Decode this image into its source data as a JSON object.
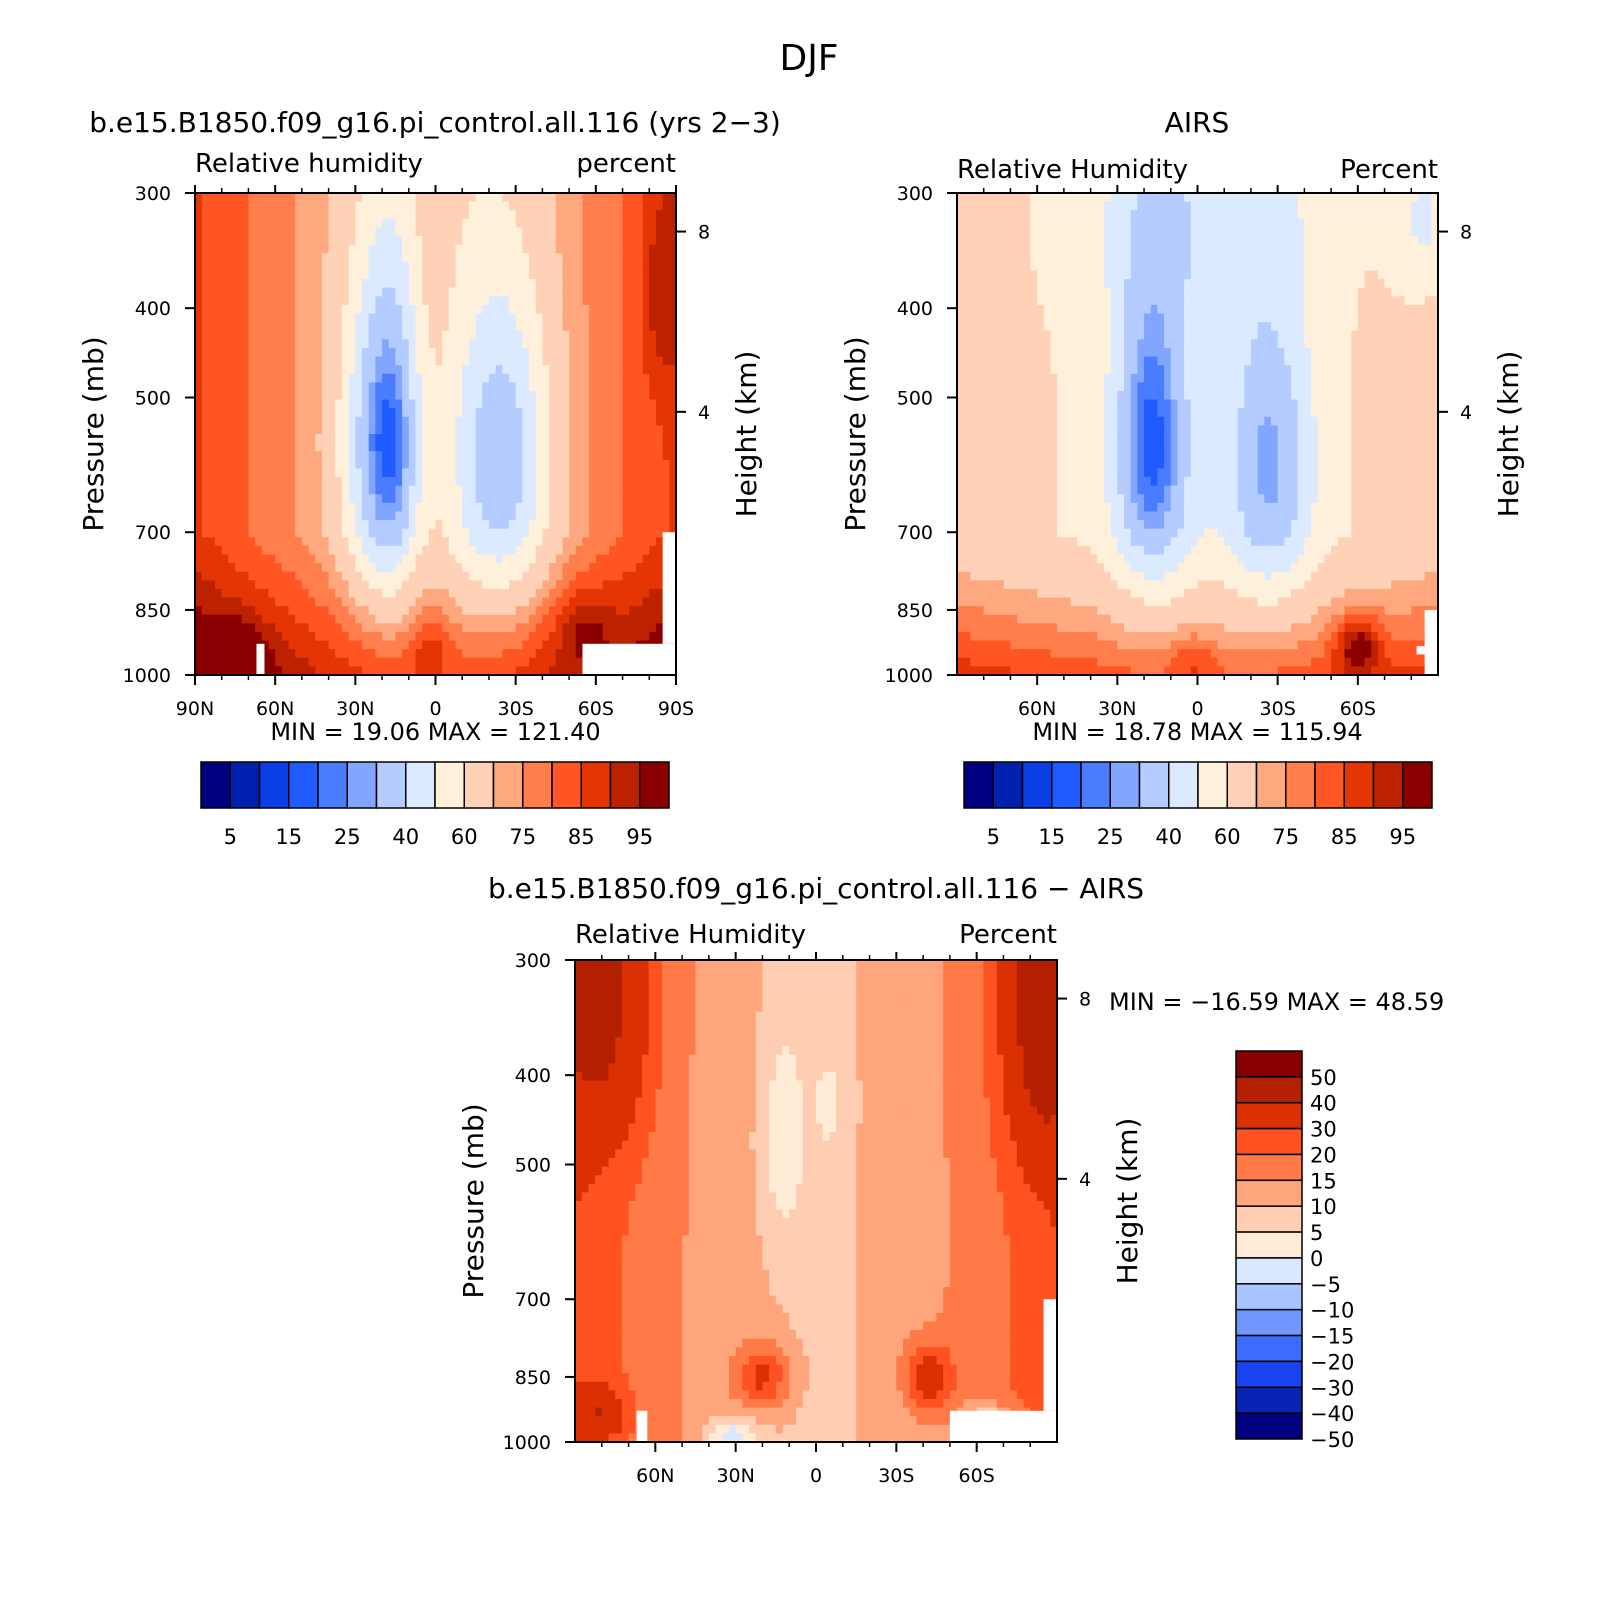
{
  "figure": {
    "title": "DJF"
  },
  "colors": {
    "abs_palette": [
      "#000080",
      "#0020b0",
      "#0a3ee6",
      "#1f5bff",
      "#4a7cff",
      "#82a6ff",
      "#b4ccff",
      "#dbeaff",
      "#fff0dc",
      "#ffd2b8",
      "#ffa880",
      "#ff7e4c",
      "#ff5624",
      "#e53505",
      "#bd2200",
      "#8a0000"
    ],
    "diff_palette": [
      "#000080",
      "#0b23b5",
      "#1a42f0",
      "#3b6cff",
      "#6f97ff",
      "#a8c4ff",
      "#d9e8ff",
      "#ffebd6",
      "#ffcdb2",
      "#ffa57c",
      "#ff7a46",
      "#ff5220",
      "#da3004",
      "#b32000",
      "#860000"
    ]
  },
  "chart_data": [
    {
      "type": "heatmap",
      "subtype": "filled-contour",
      "title": "b.e15.B1850.f09_g16.pi_control.all.116 (yrs 2−3)",
      "left_string": "Relative humidity",
      "right_string": "percent",
      "xlabel": "",
      "ylabel": "Pressure (mb)",
      "y2label": "Height (km)",
      "xlim": [
        90,
        -90
      ],
      "ylim": [
        1000,
        300
      ],
      "x_ticks": [
        90,
        60,
        30,
        0,
        -30,
        -60,
        -90
      ],
      "x_ticklabels": [
        "90N",
        "60N",
        "30N",
        "0",
        "30S",
        "60S",
        "90S"
      ],
      "y_ticks": [
        300,
        400,
        500,
        700,
        850,
        1000
      ],
      "y_ticklabels": [
        "300",
        "400",
        "500",
        "700",
        "850",
        "1000"
      ],
      "y2_ticks": [
        8,
        4
      ],
      "y2_ticklabels": [
        "8",
        "4"
      ],
      "min_label": "MIN =",
      "min_value": "19.06",
      "max_label": "MAX =",
      "max_value": "121.40",
      "field_min": 19.06,
      "field_max": 121.4,
      "levels": [
        5,
        10,
        15,
        20,
        25,
        30,
        40,
        50,
        60,
        70,
        75,
        80,
        85,
        90,
        95
      ],
      "colorbar_labels": [
        "5",
        "15",
        "25",
        "40",
        "60",
        "75",
        "85",
        "95"
      ],
      "colorbar_orientation": "horizontal",
      "features": [
        {
          "name": "subtropical dry minimum NH",
          "lat": 18,
          "pressure": 560,
          "value": 20
        },
        {
          "name": "subtropical dry minimum SH",
          "lat": -25,
          "pressure": 560,
          "value": 35
        },
        {
          "name": "moist boundary layer NH high-lat",
          "lat": 75,
          "pressure": 950,
          "value": 100
        },
        {
          "name": "moist boundary layer SH high-lat",
          "lat": -55,
          "pressure": 880,
          "value": 95
        }
      ]
    },
    {
      "type": "heatmap",
      "subtype": "filled-contour",
      "title": "AIRS",
      "left_string": "Relative Humidity",
      "right_string": "Percent",
      "xlabel": "",
      "ylabel": "Pressure (mb)",
      "y2label": "Height (km)",
      "xlim": [
        90,
        -90
      ],
      "ylim": [
        1000,
        300
      ],
      "x_ticks": [
        60,
        30,
        0,
        -30,
        -60
      ],
      "x_ticklabels": [
        "60N",
        "30N",
        "0",
        "30S",
        "60S"
      ],
      "y_ticks": [
        300,
        400,
        500,
        700,
        850,
        1000
      ],
      "y_ticklabels": [
        "300",
        "400",
        "500",
        "700",
        "850",
        "1000"
      ],
      "y2_ticks": [
        8,
        4
      ],
      "y2_ticklabels": [
        "8",
        "4"
      ],
      "min_label": "MIN =",
      "min_value": "18.78",
      "max_label": "MAX =",
      "max_value": "115.94",
      "field_min": 18.78,
      "field_max": 115.94,
      "levels": [
        5,
        10,
        15,
        20,
        25,
        30,
        40,
        50,
        60,
        70,
        75,
        80,
        85,
        90,
        95
      ],
      "colorbar_labels": [
        "5",
        "15",
        "25",
        "40",
        "60",
        "75",
        "85",
        "95"
      ],
      "colorbar_orientation": "horizontal",
      "features": [
        {
          "name": "subtropical dry minimum NH",
          "lat": 17,
          "pressure": 560,
          "value": 22
        },
        {
          "name": "subtropical dry minimum SH",
          "lat": -27,
          "pressure": 580,
          "value": 30
        },
        {
          "name": "moist boundary layer SH high-lat",
          "lat": -60,
          "pressure": 920,
          "value": 100
        }
      ]
    },
    {
      "type": "heatmap",
      "subtype": "filled-contour",
      "title": "b.e15.B1850.f09_g16.pi_control.all.116 − AIRS",
      "left_string": "Relative Humidity",
      "right_string": "Percent",
      "xlabel": "",
      "ylabel": "Pressure (mb)",
      "y2label": "Height (km)",
      "xlim": [
        90,
        -90
      ],
      "ylim": [
        1000,
        300
      ],
      "x_ticks": [
        60,
        30,
        0,
        -30,
        -60
      ],
      "x_ticklabels": [
        "60N",
        "30N",
        "0",
        "30S",
        "60S"
      ],
      "y_ticks": [
        300,
        400,
        500,
        700,
        850,
        1000
      ],
      "y_ticklabels": [
        "300",
        "400",
        "500",
        "700",
        "850",
        "1000"
      ],
      "y2_ticks": [
        8,
        4
      ],
      "y2_ticklabels": [
        "8",
        "4"
      ],
      "min_label": "MIN =",
      "min_value": "−16.59",
      "max_label": "MAX =",
      "max_value": "48.59",
      "field_min": -16.59,
      "field_max": 48.59,
      "levels": [
        -50,
        -40,
        -30,
        -20,
        -15,
        -10,
        -5,
        0,
        5,
        10,
        15,
        20,
        30,
        40,
        50
      ],
      "colorbar_labels": [
        "50",
        "40",
        "30",
        "20",
        "15",
        "10",
        "5",
        "0",
        "−5",
        "−10",
        "−15",
        "−20",
        "−30",
        "−40",
        "−50"
      ],
      "colorbar_orientation": "vertical",
      "features": [
        {
          "name": "positive bias NH high-lat upper",
          "lat": 80,
          "pressure": 350,
          "value": 30
        },
        {
          "name": "positive bias SH high-lat upper",
          "lat": -85,
          "pressure": 350,
          "value": 35
        },
        {
          "name": "positive bias NH subtropics low",
          "lat": 20,
          "pressure": 850,
          "value": 20
        },
        {
          "name": "positive bias SH subtropics low",
          "lat": -40,
          "pressure": 850,
          "value": 20
        },
        {
          "name": "negative bias tropics mid",
          "lat": 12,
          "pressure": 450,
          "value": -3
        }
      ]
    }
  ]
}
